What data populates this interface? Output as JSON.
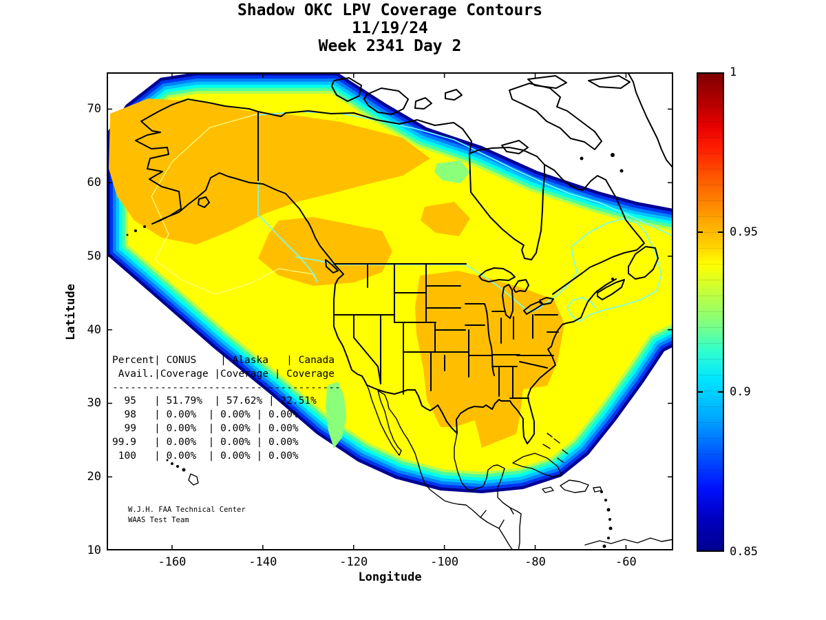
{
  "title": {
    "line1": "Shadow OKC LPV Coverage Contours",
    "line2": "11/19/24",
    "line3": "Week 2341 Day 2"
  },
  "axes": {
    "xlabel": "Longitude",
    "ylabel": "Latitude",
    "x_ticks": [
      -160,
      -140,
      -120,
      -100,
      -80,
      -60
    ],
    "y_ticks": [
      70,
      60,
      50,
      40,
      30,
      20,
      10
    ],
    "lon_range": [
      -174.4,
      -49.6
    ],
    "lat_range": [
      10,
      75
    ]
  },
  "colorbar": {
    "min": 0.85,
    "max": 1,
    "tick_labels": [
      "1",
      "0.95",
      "0.9",
      "0.85"
    ],
    "tick_values": [
      1,
      0.95,
      0.9,
      0.85
    ]
  },
  "table": {
    "lines": [
      "Percent| CONUS    | Alaska   | Canada",
      " Avail.|Coverage |Coverage | Coverage",
      "--------------------------------------",
      "  95   | 51.79%  | 57.62% | 22.51%",
      "  98   | 0.00%  | 0.00% | 0.00%",
      "  99   | 0.00%  | 0.00% | 0.00%",
      "99.9   | 0.00%  | 0.00% | 0.00%",
      " 100   | 0.00%  | 0.00% | 0.00%"
    ]
  },
  "credit": {
    "line1": "W.J.H. FAA Technical Center",
    "line2": "WAAS Test Team"
  },
  "chart_data": {
    "type": "heatmap",
    "subtype": "filled-contour-map",
    "title": "Shadow OKC LPV Coverage Contours",
    "date": "11/19/24",
    "week": "2341",
    "day": "2",
    "colormap": "jet",
    "value_range": [
      0.85,
      1.0
    ],
    "colorbar_ticks": [
      0.85,
      0.9,
      0.95,
      1
    ],
    "x": {
      "label": "Longitude",
      "range": [
        -174.4,
        -49.6
      ],
      "ticks": [
        -160,
        -140,
        -120,
        -100,
        -80,
        -60
      ]
    },
    "y": {
      "label": "Latitude",
      "range": [
        10,
        75
      ],
      "ticks": [
        10,
        20,
        30,
        40,
        50,
        60,
        70
      ]
    },
    "description": "LPV availability contours over North America; interior mostly 0.93-0.94 (yellow) with 0.94-0.95 (orange) regions over Alaska, western Canada and the central US; coverage falls off through green, cyan and blue bands to 0.85 at the outer boundary; white outside coverage (arctic archipelago, Greenland, Central America, Caribbean).",
    "availability_table": {
      "columns": [
        "Percent Avail.",
        "CONUS Coverage",
        "Alaska Coverage",
        "Canada Coverage"
      ],
      "rows": [
        [
          "95",
          "51.79%",
          "57.62%",
          "22.51%"
        ],
        [
          "98",
          "0.00%",
          "0.00%",
          "0.00%"
        ],
        [
          "99",
          "0.00%",
          "0.00%",
          "0.00%"
        ],
        [
          "99.9",
          "0.00%",
          "0.00%",
          "0.00%"
        ],
        [
          "100",
          "0.00%",
          "0.00%",
          "0.00%"
        ]
      ]
    }
  }
}
